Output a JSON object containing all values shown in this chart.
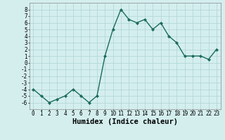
{
  "x": [
    0,
    1,
    2,
    3,
    4,
    5,
    6,
    7,
    8,
    9,
    10,
    11,
    12,
    13,
    14,
    15,
    16,
    17,
    18,
    19,
    20,
    21,
    22,
    23
  ],
  "y": [
    -4,
    -5,
    -6,
    -5.5,
    -5,
    -4,
    -5,
    -6,
    -5,
    1,
    5,
    8,
    6.5,
    6,
    6.5,
    5,
    6,
    4,
    3,
    1,
    1,
    1,
    0.5,
    2
  ],
  "line_color": "#1a6b5a",
  "marker_color": "#1a6b5a",
  "bg_color": "#d4eeee",
  "grid_color": "#b0d4d4",
  "xlabel": "Humidex (Indice chaleur)",
  "ylim": [
    -7,
    9
  ],
  "xlim": [
    -0.5,
    23.5
  ],
  "yticks": [
    -6,
    -5,
    -4,
    -3,
    -2,
    -1,
    0,
    1,
    2,
    3,
    4,
    5,
    6,
    7,
    8
  ],
  "xticks": [
    0,
    1,
    2,
    3,
    4,
    5,
    6,
    7,
    8,
    9,
    10,
    11,
    12,
    13,
    14,
    15,
    16,
    17,
    18,
    19,
    20,
    21,
    22,
    23
  ],
  "linewidth": 1.0,
  "markersize": 2.2,
  "tick_fontsize": 5.5,
  "xlabel_fontsize": 7.5
}
